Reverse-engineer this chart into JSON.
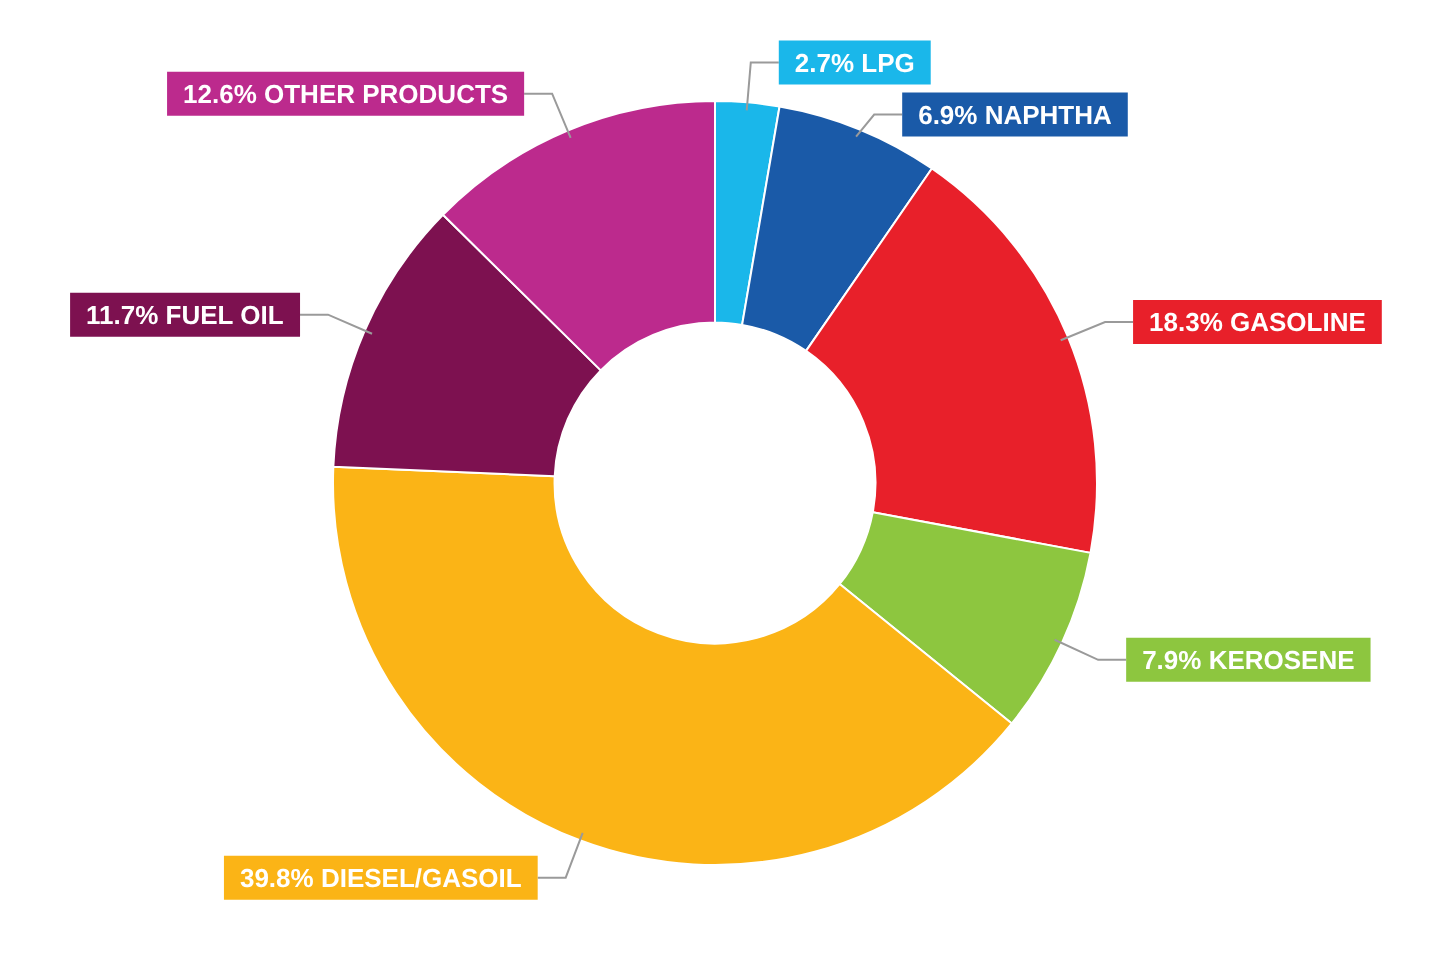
{
  "chart_data": {
    "type": "donut",
    "categories": [
      "LPG",
      "NAPHTHA",
      "GASOLINE",
      "KEROSENE",
      "DIESEL/GASOIL",
      "FUEL OIL",
      "OTHER PRODUCTS"
    ],
    "values": [
      2.7,
      6.9,
      18.3,
      7.9,
      39.8,
      11.7,
      12.6
    ],
    "value_labels": [
      "2.7%",
      "6.9%",
      "18.3%",
      "7.9%",
      "39.8%",
      "11.7%",
      "12.6%"
    ],
    "colors": [
      "#1ab7ea",
      "#1a5aa8",
      "#e8202a",
      "#8dc63f",
      "#fbb416",
      "#7d1150",
      "#bc2a8d"
    ],
    "legend": false
  }
}
